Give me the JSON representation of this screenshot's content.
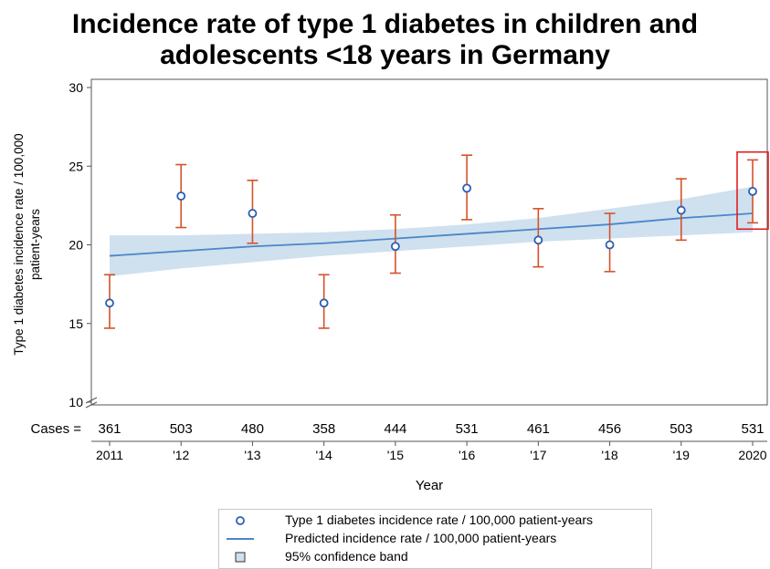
{
  "chart_data": {
    "type": "scatter",
    "title": "Incidence rate of type 1 diabetes in children and",
    "title_line2": "adolescents <18 years in Germany",
    "xlabel": "Year",
    "ylabel_line1": "Type 1 diabetes incidence rate / 100,000",
    "ylabel_line2": "patient-years",
    "ylim": [
      10,
      30
    ],
    "yticks": [
      10,
      15,
      20,
      25,
      30
    ],
    "x": [
      "2011",
      "'12",
      "'13",
      "'14",
      "'15",
      "'16",
      "'17",
      "'18",
      "'19",
      "2020"
    ],
    "cases_label": "Cases =",
    "cases": [
      361,
      503,
      480,
      358,
      444,
      531,
      461,
      456,
      503,
      531
    ],
    "series": [
      {
        "name": "Type 1 diabetes incidence rate / 100,000 patient-years",
        "values": [
          16.3,
          23.1,
          22.0,
          16.3,
          19.9,
          23.6,
          20.3,
          20.0,
          22.2,
          23.4
        ],
        "ci_low": [
          14.7,
          21.1,
          20.1,
          14.7,
          18.2,
          21.6,
          18.6,
          18.3,
          20.3,
          21.4
        ],
        "ci_high": [
          18.1,
          25.1,
          24.1,
          18.1,
          21.9,
          25.7,
          22.3,
          22.0,
          24.2,
          25.4
        ]
      },
      {
        "name": "Predicted incidence rate / 100,000 patient-years",
        "values": [
          19.3,
          19.6,
          19.9,
          20.1,
          20.4,
          20.7,
          21.0,
          21.3,
          21.7,
          22.0
        ]
      },
      {
        "name": "95% confidence band",
        "lower": [
          18.0,
          18.5,
          18.9,
          19.3,
          19.6,
          19.9,
          20.2,
          20.4,
          20.6,
          20.8
        ],
        "upper": [
          20.6,
          20.6,
          20.7,
          20.8,
          21.0,
          21.3,
          21.7,
          22.3,
          22.9,
          23.7
        ]
      }
    ],
    "highlight_index": 9,
    "colors": {
      "point": "#2b5fb4",
      "error_bar": "#d4522a",
      "line": "#4a86c8",
      "band": "#cfe0ef",
      "highlight": "#e02020",
      "axis": "#555555"
    },
    "grid": false,
    "legend_position": "bottom"
  }
}
